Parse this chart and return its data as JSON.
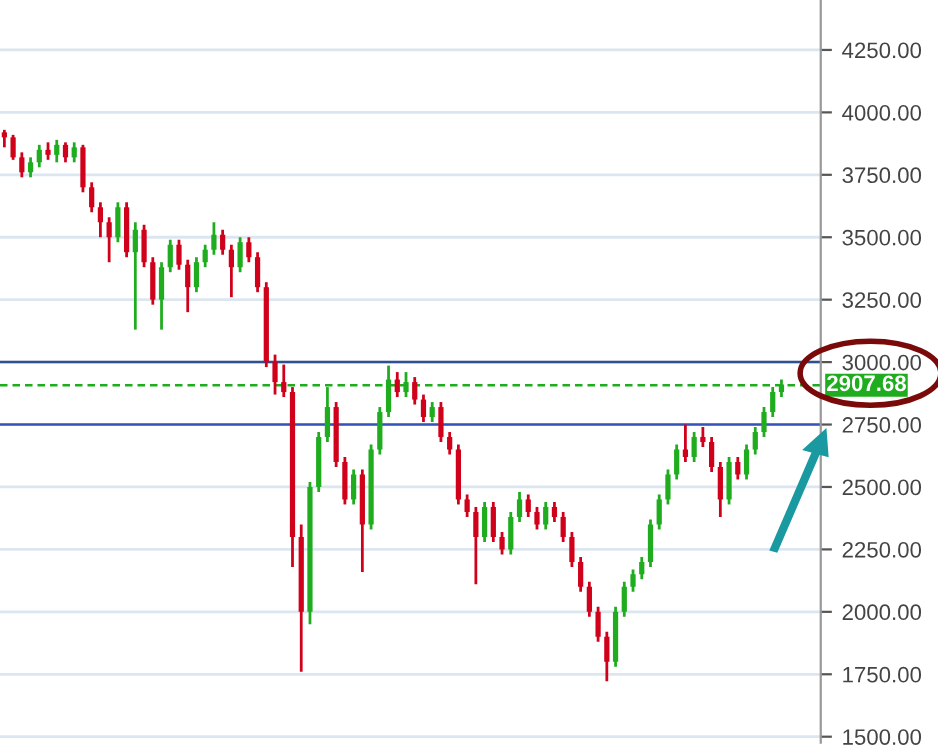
{
  "chart_data": {
    "type": "candlestick",
    "categories": [
      null,
      null,
      null,
      null,
      null,
      null,
      null,
      null,
      null,
      null,
      null,
      null,
      null,
      null,
      null,
      null,
      null,
      null,
      null,
      null,
      null,
      null,
      null,
      null,
      null,
      null,
      null,
      null,
      null,
      null,
      null,
      null,
      null,
      null,
      null,
      null,
      null,
      null,
      null,
      null,
      null,
      null,
      null,
      null,
      null,
      null,
      null,
      null,
      null,
      null,
      null,
      null,
      null,
      null,
      null,
      null,
      null,
      null,
      null,
      null,
      null,
      null,
      null,
      null,
      null,
      null,
      null,
      null,
      null,
      null,
      null,
      null,
      null,
      null,
      null,
      null,
      null,
      null,
      null,
      null,
      null,
      null,
      null,
      null,
      null,
      null,
      null,
      null,
      null,
      null
    ],
    "ohlc": [
      [
        3920,
        3930,
        3860,
        3900
      ],
      [
        3900,
        3910,
        3810,
        3820
      ],
      [
        3820,
        3840,
        3740,
        3760
      ],
      [
        3760,
        3820,
        3740,
        3800
      ],
      [
        3800,
        3870,
        3780,
        3850
      ],
      [
        3850,
        3880,
        3810,
        3830
      ],
      [
        3830,
        3890,
        3800,
        3870
      ],
      [
        3870,
        3880,
        3800,
        3820
      ],
      [
        3820,
        3880,
        3800,
        3860
      ],
      [
        3860,
        3870,
        3680,
        3700
      ],
      [
        3700,
        3720,
        3600,
        3620
      ],
      [
        3620,
        3640,
        3500,
        3560
      ],
      [
        3560,
        3580,
        3400,
        3500
      ],
      [
        3500,
        3640,
        3480,
        3620
      ],
      [
        3620,
        3640,
        3420,
        3440
      ],
      [
        3440,
        3560,
        3130,
        3530
      ],
      [
        3530,
        3550,
        3380,
        3400
      ],
      [
        3400,
        3420,
        3230,
        3250
      ],
      [
        3250,
        3400,
        3130,
        3380
      ],
      [
        3380,
        3490,
        3360,
        3470
      ],
      [
        3470,
        3490,
        3370,
        3390
      ],
      [
        3390,
        3410,
        3200,
        3300
      ],
      [
        3300,
        3420,
        3280,
        3400
      ],
      [
        3400,
        3470,
        3380,
        3450
      ],
      [
        3450,
        3560,
        3430,
        3510
      ],
      [
        3510,
        3530,
        3430,
        3450
      ],
      [
        3450,
        3470,
        3260,
        3380
      ],
      [
        3380,
        3500,
        3360,
        3480
      ],
      [
        3480,
        3500,
        3400,
        3420
      ],
      [
        3420,
        3440,
        3280,
        3300
      ],
      [
        3300,
        3320,
        2980,
        3000
      ],
      [
        3000,
        3030,
        2870,
        2920
      ],
      [
        2920,
        2990,
        2860,
        2880
      ],
      [
        2880,
        2900,
        2180,
        2300
      ],
      [
        2300,
        2350,
        1760,
        2000
      ],
      [
        2000,
        2520,
        1950,
        2500
      ],
      [
        2500,
        2720,
        2480,
        2700
      ],
      [
        2700,
        2900,
        2680,
        2820
      ],
      [
        2820,
        2840,
        2580,
        2600
      ],
      [
        2600,
        2620,
        2430,
        2450
      ],
      [
        2450,
        2570,
        2430,
        2550
      ],
      [
        2550,
        2570,
        2160,
        2350
      ],
      [
        2350,
        2670,
        2330,
        2650
      ],
      [
        2650,
        2820,
        2630,
        2800
      ],
      [
        2800,
        2986,
        2780,
        2930
      ],
      [
        2930,
        2960,
        2860,
        2880
      ],
      [
        2880,
        2960,
        2860,
        2920
      ],
      [
        2920,
        2940,
        2830,
        2850
      ],
      [
        2850,
        2870,
        2760,
        2780
      ],
      [
        2780,
        2840,
        2760,
        2820
      ],
      [
        2820,
        2840,
        2680,
        2700
      ],
      [
        2700,
        2720,
        2630,
        2650
      ],
      [
        2650,
        2670,
        2430,
        2450
      ],
      [
        2450,
        2470,
        2380,
        2400
      ],
      [
        2400,
        2420,
        2110,
        2300
      ],
      [
        2300,
        2440,
        2280,
        2420
      ],
      [
        2420,
        2440,
        2280,
        2300
      ],
      [
        2300,
        2320,
        2230,
        2250
      ],
      [
        2250,
        2400,
        2230,
        2380
      ],
      [
        2380,
        2480,
        2360,
        2450
      ],
      [
        2450,
        2470,
        2380,
        2400
      ],
      [
        2400,
        2420,
        2330,
        2350
      ],
      [
        2350,
        2440,
        2330,
        2420
      ],
      [
        2420,
        2440,
        2360,
        2380
      ],
      [
        2380,
        2400,
        2280,
        2300
      ],
      [
        2300,
        2320,
        2180,
        2200
      ],
      [
        2200,
        2220,
        2080,
        2100
      ],
      [
        2100,
        2120,
        1980,
        2000
      ],
      [
        2000,
        2020,
        1880,
        1900
      ],
      [
        1900,
        1920,
        1722,
        1800
      ],
      [
        1800,
        2020,
        1780,
        2000
      ],
      [
        2000,
        2120,
        1980,
        2100
      ],
      [
        2100,
        2170,
        2080,
        2150
      ],
      [
        2150,
        2220,
        2130,
        2200
      ],
      [
        2200,
        2370,
        2180,
        2350
      ],
      [
        2350,
        2470,
        2330,
        2450
      ],
      [
        2450,
        2570,
        2430,
        2550
      ],
      [
        2550,
        2670,
        2530,
        2650
      ],
      [
        2650,
        2750,
        2600,
        2620
      ],
      [
        2620,
        2720,
        2600,
        2700
      ],
      [
        2700,
        2740,
        2660,
        2680
      ],
      [
        2680,
        2700,
        2560,
        2580
      ],
      [
        2580,
        2600,
        2380,
        2450
      ],
      [
        2450,
        2620,
        2430,
        2600
      ],
      [
        2600,
        2620,
        2530,
        2550
      ],
      [
        2550,
        2670,
        2530,
        2650
      ],
      [
        2650,
        2740,
        2630,
        2720
      ],
      [
        2720,
        2820,
        2700,
        2800
      ],
      [
        2800,
        2900,
        2780,
        2880
      ],
      [
        2880,
        2930,
        2860,
        2910
      ]
    ],
    "colors": [
      "#d0021b",
      "#d0021b",
      "#d0021b",
      "#1fad1f",
      "#1fad1f",
      "#d0021b",
      "#1fad1f",
      "#d0021b",
      "#1fad1f",
      "#d0021b",
      "#d0021b",
      "#d0021b",
      "#d0021b",
      "#1fad1f",
      "#d0021b",
      "#1fad1f",
      "#d0021b",
      "#d0021b",
      "#1fad1f",
      "#1fad1f",
      "#d0021b",
      "#d0021b",
      "#1fad1f",
      "#1fad1f",
      "#1fad1f",
      "#d0021b",
      "#d0021b",
      "#1fad1f",
      "#d0021b",
      "#d0021b",
      "#d0021b",
      "#d0021b",
      "#d0021b",
      "#d0021b",
      "#d0021b",
      "#1fad1f",
      "#1fad1f",
      "#1fad1f",
      "#d0021b",
      "#d0021b",
      "#1fad1f",
      "#d0021b",
      "#1fad1f",
      "#1fad1f",
      "#1fad1f",
      "#d0021b",
      "#1fad1f",
      "#d0021b",
      "#d0021b",
      "#1fad1f",
      "#d0021b",
      "#d0021b",
      "#d0021b",
      "#d0021b",
      "#d0021b",
      "#1fad1f",
      "#d0021b",
      "#d0021b",
      "#1fad1f",
      "#1fad1f",
      "#d0021b",
      "#d0021b",
      "#1fad1f",
      "#d0021b",
      "#d0021b",
      "#d0021b",
      "#d0021b",
      "#d0021b",
      "#d0021b",
      "#d0021b",
      "#1fad1f",
      "#1fad1f",
      "#1fad1f",
      "#1fad1f",
      "#1fad1f",
      "#1fad1f",
      "#1fad1f",
      "#1fad1f",
      "#d0021b",
      "#1fad1f",
      "#d0021b",
      "#d0021b",
      "#d0021b",
      "#1fad1f",
      "#d0021b",
      "#1fad1f",
      "#1fad1f",
      "#1fad1f",
      "#1fad1f",
      "#1fad1f"
    ],
    "ylim": [
      1476,
      4450
    ],
    "yticks": [
      {
        "value": 1500,
        "label": "1500.00"
      },
      {
        "value": 1750,
        "label": "1750.00"
      },
      {
        "value": 2000,
        "label": "2000.00"
      },
      {
        "value": 2250,
        "label": "2250.00"
      },
      {
        "value": 2500,
        "label": "2500.00"
      },
      {
        "value": 2750,
        "label": "2750.00"
      },
      {
        "value": 3000,
        "label": "3000.00"
      },
      {
        "value": 3250,
        "label": "3250.00"
      },
      {
        "value": 3500,
        "label": "3500.00"
      },
      {
        "value": 3750,
        "label": "3750.00"
      },
      {
        "value": 4000,
        "label": "4000.00"
      },
      {
        "value": 4250,
        "label": "4250.00"
      }
    ],
    "tick_labels": "y",
    "grid": "y",
    "ref_lines": [
      {
        "axis": "y",
        "value": 3000,
        "color": "#2f4f8f",
        "line_style": "solid"
      },
      {
        "axis": "y",
        "value": 2750,
        "color": "#3355bb",
        "line_style": "solid"
      },
      {
        "axis": "y",
        "value": 2907.68,
        "label": "2907.68",
        "color": "#1fad1f",
        "line_style": "dashed"
      }
    ]
  }
}
